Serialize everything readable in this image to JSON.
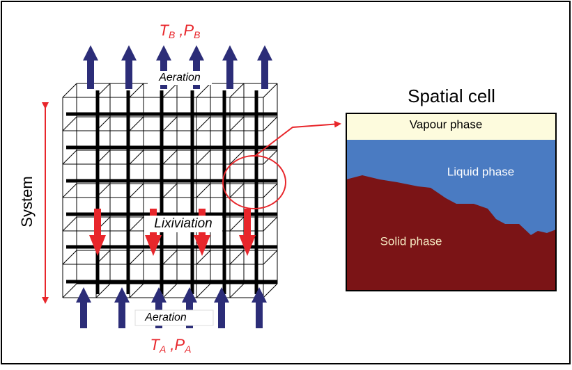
{
  "top_conditions": {
    "terms": [
      {
        "symbol": "T",
        "subscript": "B"
      },
      {
        "symbol": "P",
        "subscript": "B"
      }
    ],
    "separator": ","
  },
  "bottom_conditions": {
    "terms": [
      {
        "symbol": "T",
        "subscript": "A"
      },
      {
        "symbol": "P",
        "subscript": "A"
      }
    ],
    "separator": ","
  },
  "lattice": {
    "top_label": "Aeration",
    "middle_label": "Lixiviation",
    "bottom_label": "Aeration",
    "axis_label": "System"
  },
  "cell": {
    "title": "Spatial cell",
    "phases": [
      "Vapour phase",
      "Liquid phase",
      "Solid phase"
    ]
  }
}
